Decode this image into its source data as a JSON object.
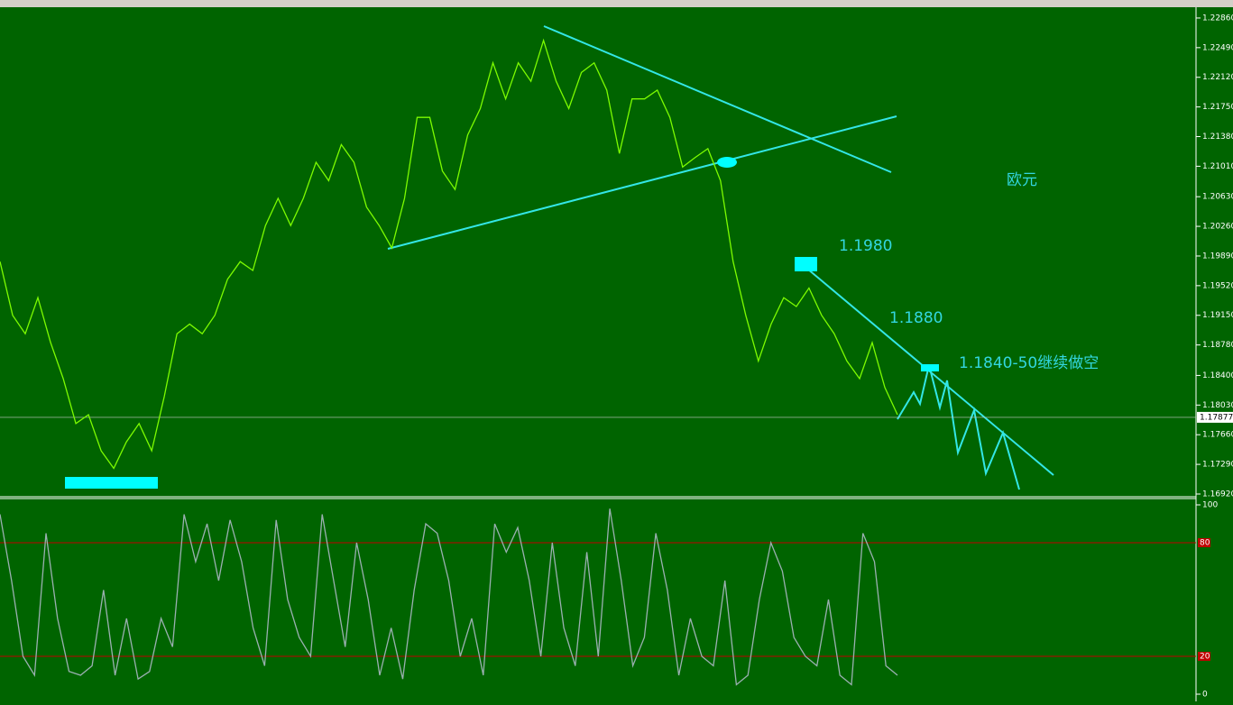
{
  "chart_data": [
    {
      "type": "line",
      "name": "price",
      "color": "#7cfc00",
      "values": [
        1.1982,
        1.1915,
        1.1892,
        1.1937,
        1.1881,
        1.1836,
        1.178,
        1.1791,
        1.1746,
        1.1724,
        1.1757,
        1.178,
        1.1746,
        1.1814,
        1.1892,
        1.1904,
        1.1892,
        1.1915,
        1.196,
        1.1982,
        1.1971,
        1.2027,
        1.2061,
        1.2027,
        1.2061,
        1.2106,
        1.2083,
        1.2128,
        1.2106,
        1.205,
        1.2027,
        1.1999,
        1.2061,
        1.2162,
        1.2162,
        1.2095,
        1.2072,
        1.214,
        1.2173,
        1.223,
        1.2185,
        1.223,
        1.2207,
        1.2258,
        1.2207,
        1.2173,
        1.2218,
        1.223,
        1.2196,
        1.2117,
        1.2185,
        1.2185,
        1.2196,
        1.2162,
        1.21,
        1.2112,
        1.2123,
        1.2083,
        1.1982,
        1.1915,
        1.1858,
        1.1904,
        1.1937,
        1.1926,
        1.1949,
        1.1915,
        1.1892,
        1.1858,
        1.1836,
        1.1881,
        1.1825,
        1.1791
      ],
      "ylim": [
        1.16886,
        1.22972
      ],
      "yticks": [
        {
          "value": 1.2286,
          "label": "1.22860"
        },
        {
          "value": 1.2249,
          "label": "1.22490"
        },
        {
          "value": 1.2212,
          "label": "1.22120"
        },
        {
          "value": 1.2175,
          "label": "1.21750"
        },
        {
          "value": 1.2138,
          "label": "1.21380"
        },
        {
          "value": 1.2101,
          "label": "1.21010"
        },
        {
          "value": 1.2063,
          "label": "1.20630"
        },
        {
          "value": 1.2026,
          "label": "1.20260"
        },
        {
          "value": 1.1989,
          "label": "1.19890"
        },
        {
          "value": 1.1952,
          "label": "1.19520"
        },
        {
          "value": 1.1915,
          "label": "1.19150"
        },
        {
          "value": 1.1878,
          "label": "1.18780"
        },
        {
          "value": 1.184,
          "label": "1.18400"
        },
        {
          "value": 1.1803,
          "label": "1.18030"
        },
        {
          "value": 1.1766,
          "label": "1.17660"
        },
        {
          "value": 1.1729,
          "label": "1.17290"
        },
        {
          "value": 1.1692,
          "label": "1.16920"
        }
      ],
      "current_price": {
        "value": 1.17877,
        "label": "1.17877"
      },
      "annotations": [
        "欧元",
        "1.1980",
        "1.1880",
        "1.1840-50继续做空"
      ]
    },
    {
      "type": "line",
      "name": "oscillator",
      "color": "#9ab0b0",
      "values": [
        95,
        60,
        20,
        10,
        85,
        40,
        12,
        10,
        15,
        55,
        10,
        40,
        8,
        12,
        40,
        25,
        95,
        70,
        90,
        60,
        92,
        70,
        35,
        15,
        92,
        50,
        30,
        20,
        95,
        60,
        25,
        80,
        50,
        10,
        35,
        8,
        55,
        90,
        85,
        60,
        20,
        40,
        10,
        90,
        75,
        88,
        60,
        20,
        80,
        35,
        15,
        75,
        20,
        98,
        60,
        15,
        30,
        85,
        55,
        10,
        40,
        20,
        15,
        60,
        5,
        10,
        50,
        80,
        65,
        30,
        20,
        15,
        50,
        10,
        5,
        85,
        70,
        15,
        10
      ],
      "ylim": [
        0,
        100
      ],
      "yticks": [
        0,
        100
      ],
      "levels": [
        80,
        20
      ]
    }
  ]
}
